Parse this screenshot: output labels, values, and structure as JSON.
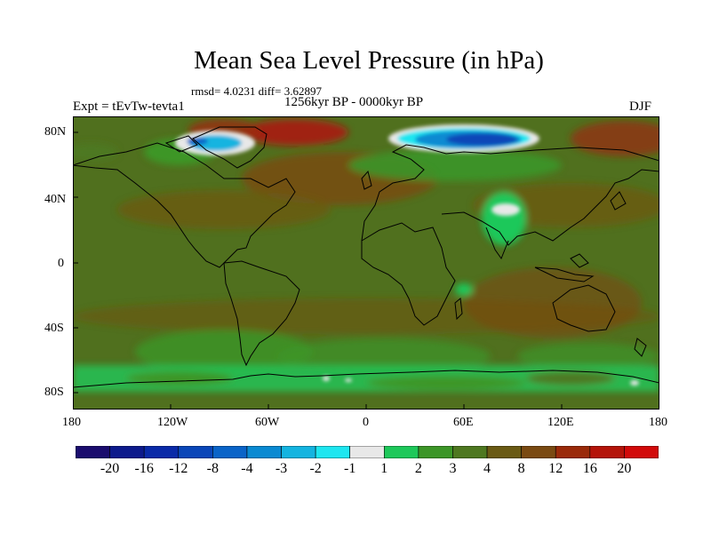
{
  "title": "Mean Sea Level Pressure (in hPa)",
  "stats": "rmsd= 4.0231 diff= 3.62897",
  "period": "1256kyr BP - 0000kyr BP",
  "experiment": "Expt = tEvTw-tevta1",
  "season": "DJF",
  "lat_ticks": [
    "80N",
    "40N",
    "0",
    "40S",
    "80S"
  ],
  "lon_ticks": [
    "180",
    "120W",
    "60W",
    "0",
    "60E",
    "120E",
    "180"
  ],
  "colorbar": {
    "labels": [
      "-20",
      "-16",
      "-12",
      "-8",
      "-4",
      "-3",
      "-2",
      "-1",
      "1",
      "2",
      "3",
      "4",
      "8",
      "12",
      "16",
      "20"
    ],
    "colors": [
      "#1a0c6e",
      "#0d1a8c",
      "#0a2aa8",
      "#0a46b8",
      "#0a64c8",
      "#0a8ad2",
      "#14b4e0",
      "#1ee6f0",
      "#e8e8e8",
      "#1ec85a",
      "#3c9628",
      "#4e7820",
      "#6a5a14",
      "#7a4a12",
      "#9a2a0a",
      "#b4140a",
      "#d20a0a"
    ]
  },
  "colors": {
    "background_field": "#50701e",
    "land_outline": "#000000"
  }
}
